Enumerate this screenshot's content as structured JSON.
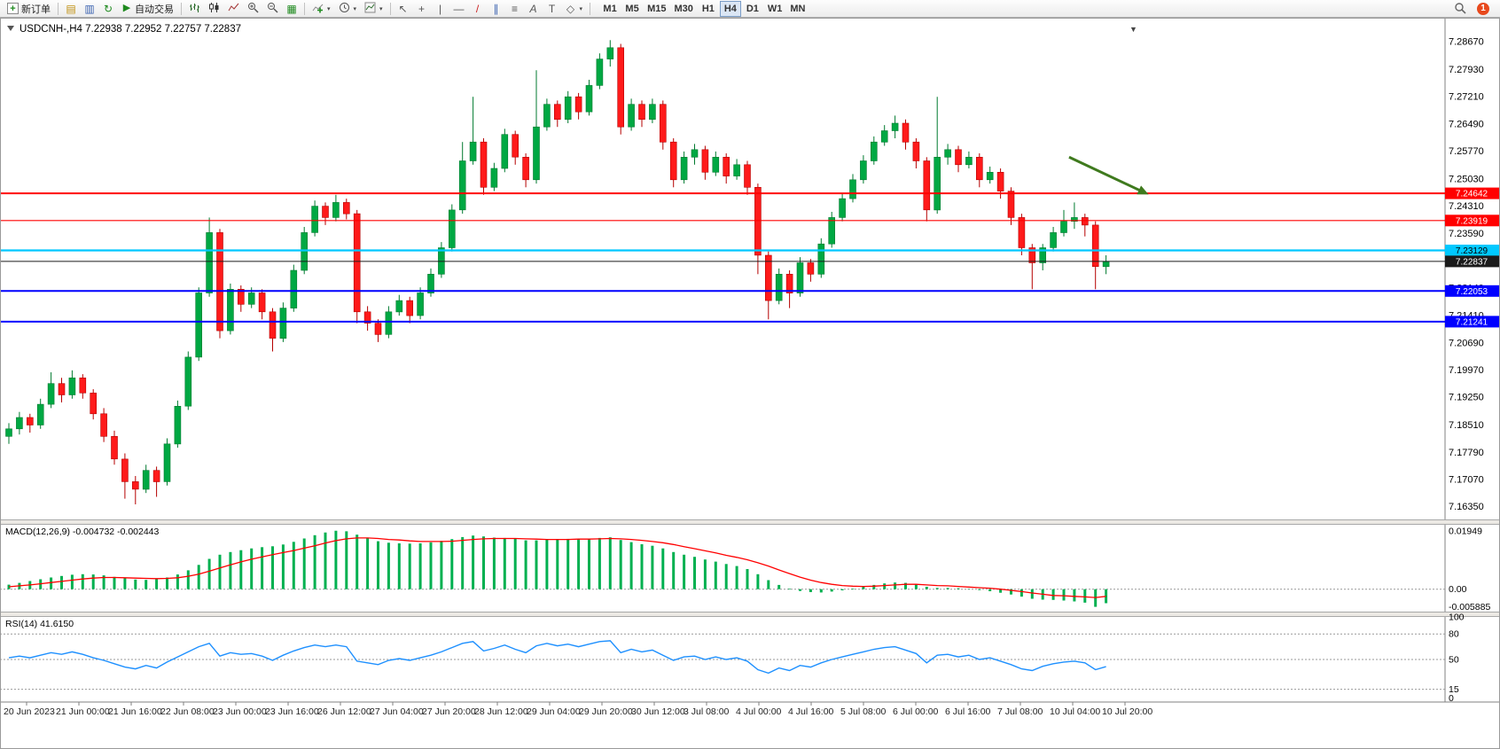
{
  "toolbar": {
    "new_order": "新订单",
    "autotrading": "自动交易",
    "timeframes": [
      "M1",
      "M5",
      "M15",
      "M30",
      "H1",
      "H4",
      "D1",
      "W1",
      "MN"
    ],
    "active_timeframe": "H4",
    "notification_count": "1"
  },
  "icons": {
    "plus": "+",
    "chart_window": "▤",
    "profiles": "▥",
    "refresh": "↻",
    "play": "▶",
    "tile_windows": "▦",
    "cursor": "↖",
    "crosshair": "+",
    "vertical_line": "|",
    "horizontal_line": "—",
    "trendline": "/",
    "channel": "∥",
    "fibonacci": "≡",
    "text": "A",
    "text_label": "T",
    "shapes": "◇",
    "caret": "▾",
    "collapse": "▼"
  },
  "chart": {
    "header": "USDCNH-,H4  7.22938 7.22952 7.22757 7.22837",
    "price_axis_labels": [
      "7.28670",
      "7.27930",
      "7.27210",
      "7.26490",
      "7.25770",
      "7.25030",
      "7.24310",
      "7.23590",
      "7.22870",
      "7.22140",
      "7.21410",
      "7.20690",
      "7.19970",
      "7.19250",
      "7.18510",
      "7.17790",
      "7.17070",
      "7.16350"
    ],
    "hlines": [
      {
        "price": 7.24642,
        "label": "7.24642",
        "color": "#ff0000",
        "thickness": 2,
        "text": "#ffffff",
        "is_bid": false
      },
      {
        "price": 7.23919,
        "label": "7.23919",
        "color": "#ff0000",
        "thickness": 1.2,
        "text": "#ffffff",
        "is_bid": false
      },
      {
        "price": 7.23129,
        "label": "7.23129",
        "color": "#00c8ff",
        "thickness": 2.2,
        "text": "#000000",
        "is_bid": false
      },
      {
        "price": 7.22837,
        "label": "7.22837",
        "color": "#1a1a1a",
        "thickness": 1,
        "text": "#ffffff",
        "is_bid": true
      },
      {
        "price": 7.22053,
        "label": "7.22053",
        "color": "#0000ff",
        "thickness": 2,
        "text": "#ffffff",
        "is_bid": false
      },
      {
        "price": 7.21241,
        "label": "7.21241",
        "color": "#0000ff",
        "thickness": 2,
        "text": "#ffffff",
        "is_bid": false
      }
    ],
    "arrow": {
      "from_bar": 100.5,
      "from_price": 7.256,
      "to_bar": 107.5,
      "to_price": 7.2468,
      "color": "#3f7a1e"
    }
  },
  "colors": {
    "bull": "#00a843",
    "bull_edge": "#007a2f",
    "bear": "#ff1a1a",
    "bear_edge": "#b50000",
    "macd_hist": "#00b050",
    "macd_signal": "#ff0000",
    "rsi_line": "#1e90ff"
  },
  "chart_data": {
    "type": "candlestick",
    "symbol": "USDCNH-",
    "timeframe": "H4",
    "candles": [
      [
        7.182,
        7.1855,
        7.18,
        7.184
      ],
      [
        7.184,
        7.1885,
        7.1825,
        7.187
      ],
      [
        7.187,
        7.188,
        7.183,
        7.185
      ],
      [
        7.185,
        7.192,
        7.184,
        7.1905
      ],
      [
        7.1905,
        7.199,
        7.1895,
        7.196
      ],
      [
        7.196,
        7.1975,
        7.191,
        7.193
      ],
      [
        7.193,
        7.1995,
        7.192,
        7.1975
      ],
      [
        7.1975,
        7.1985,
        7.192,
        7.1935
      ],
      [
        7.1935,
        7.1945,
        7.1865,
        7.188
      ],
      [
        7.188,
        7.1895,
        7.1805,
        7.182
      ],
      [
        7.182,
        7.1835,
        7.1745,
        7.176
      ],
      [
        7.176,
        7.1775,
        7.1655,
        7.17
      ],
      [
        7.17,
        7.1715,
        7.164,
        7.168
      ],
      [
        7.168,
        7.1745,
        7.167,
        7.173
      ],
      [
        7.173,
        7.174,
        7.166,
        7.17
      ],
      [
        7.17,
        7.1815,
        7.169,
        7.18
      ],
      [
        7.18,
        7.1915,
        7.179,
        7.19
      ],
      [
        7.19,
        7.2045,
        7.189,
        7.203
      ],
      [
        7.203,
        7.2215,
        7.202,
        7.22
      ],
      [
        7.22,
        7.24,
        7.219,
        7.236
      ],
      [
        7.236,
        7.237,
        7.208,
        7.21
      ],
      [
        7.21,
        7.2225,
        7.209,
        7.221
      ],
      [
        7.221,
        7.222,
        7.215,
        7.217
      ],
      [
        7.217,
        7.2215,
        7.216,
        7.22
      ],
      [
        7.22,
        7.221,
        7.213,
        7.215
      ],
      [
        7.215,
        7.216,
        7.2045,
        7.208
      ],
      [
        7.208,
        7.2175,
        7.207,
        7.216
      ],
      [
        7.216,
        7.2275,
        7.215,
        7.226
      ],
      [
        7.226,
        7.2375,
        7.225,
        7.236
      ],
      [
        7.236,
        7.2445,
        7.235,
        7.243
      ],
      [
        7.243,
        7.244,
        7.238,
        7.24
      ],
      [
        7.24,
        7.246,
        7.239,
        7.244
      ],
      [
        7.244,
        7.245,
        7.2395,
        7.241
      ],
      [
        7.241,
        7.242,
        7.212,
        7.215
      ],
      [
        7.215,
        7.2165,
        7.21,
        7.212
      ],
      [
        7.212,
        7.213,
        7.207,
        7.209
      ],
      [
        7.209,
        7.2165,
        7.208,
        7.215
      ],
      [
        7.215,
        7.2195,
        7.214,
        7.218
      ],
      [
        7.218,
        7.219,
        7.212,
        7.214
      ],
      [
        7.214,
        7.2215,
        7.213,
        7.22
      ],
      [
        7.22,
        7.2265,
        7.219,
        7.225
      ],
      [
        7.225,
        7.2335,
        7.224,
        7.232
      ],
      [
        7.232,
        7.2435,
        7.231,
        7.242
      ],
      [
        7.242,
        7.26,
        7.241,
        7.255
      ],
      [
        7.255,
        7.272,
        7.254,
        7.26
      ],
      [
        7.26,
        7.261,
        7.246,
        7.248
      ],
      [
        7.248,
        7.2545,
        7.247,
        7.253
      ],
      [
        7.253,
        7.2635,
        7.252,
        7.262
      ],
      [
        7.262,
        7.263,
        7.254,
        7.256
      ],
      [
        7.256,
        7.257,
        7.248,
        7.25
      ],
      [
        7.25,
        7.279,
        7.249,
        7.264
      ],
      [
        7.264,
        7.2715,
        7.263,
        7.27
      ],
      [
        7.27,
        7.271,
        7.264,
        7.266
      ],
      [
        7.266,
        7.2735,
        7.265,
        7.272
      ],
      [
        7.272,
        7.273,
        7.266,
        7.268
      ],
      [
        7.268,
        7.2765,
        7.267,
        7.275
      ],
      [
        7.275,
        7.2835,
        7.274,
        7.282
      ],
      [
        7.282,
        7.287,
        7.28,
        7.285
      ],
      [
        7.285,
        7.286,
        7.262,
        7.264
      ],
      [
        7.264,
        7.2715,
        7.263,
        7.27
      ],
      [
        7.27,
        7.271,
        7.264,
        7.266
      ],
      [
        7.266,
        7.2715,
        7.265,
        7.27
      ],
      [
        7.27,
        7.271,
        7.258,
        7.26
      ],
      [
        7.26,
        7.261,
        7.248,
        7.25
      ],
      [
        7.25,
        7.2575,
        7.249,
        7.256
      ],
      [
        7.256,
        7.2595,
        7.254,
        7.258
      ],
      [
        7.258,
        7.259,
        7.25,
        7.252
      ],
      [
        7.252,
        7.2575,
        7.251,
        7.256
      ],
      [
        7.256,
        7.257,
        7.249,
        7.251
      ],
      [
        7.251,
        7.2555,
        7.25,
        7.254
      ],
      [
        7.254,
        7.255,
        7.246,
        7.248
      ],
      [
        7.248,
        7.249,
        7.225,
        7.23
      ],
      [
        7.23,
        7.231,
        7.213,
        7.218
      ],
      [
        7.218,
        7.2265,
        7.217,
        7.225
      ],
      [
        7.225,
        7.226,
        7.216,
        7.22
      ],
      [
        7.22,
        7.2295,
        7.219,
        7.228
      ],
      [
        7.228,
        7.229,
        7.223,
        7.225
      ],
      [
        7.225,
        7.2345,
        7.224,
        7.233
      ],
      [
        7.233,
        7.2415,
        7.232,
        7.24
      ],
      [
        7.24,
        7.2465,
        7.239,
        7.245
      ],
      [
        7.245,
        7.2515,
        7.244,
        7.25
      ],
      [
        7.25,
        7.2565,
        7.249,
        7.255
      ],
      [
        7.255,
        7.2615,
        7.254,
        7.26
      ],
      [
        7.26,
        7.2645,
        7.259,
        7.263
      ],
      [
        7.263,
        7.267,
        7.261,
        7.265
      ],
      [
        7.265,
        7.266,
        7.258,
        7.26
      ],
      [
        7.26,
        7.261,
        7.253,
        7.255
      ],
      [
        7.255,
        7.256,
        7.239,
        7.242
      ],
      [
        7.242,
        7.272,
        7.241,
        7.256
      ],
      [
        7.256,
        7.2595,
        7.254,
        7.258
      ],
      [
        7.258,
        7.259,
        7.252,
        7.254
      ],
      [
        7.254,
        7.2575,
        7.253,
        7.256
      ],
      [
        7.256,
        7.257,
        7.248,
        7.25
      ],
      [
        7.25,
        7.2535,
        7.249,
        7.252
      ],
      [
        7.252,
        7.253,
        7.245,
        7.247
      ],
      [
        7.247,
        7.248,
        7.238,
        7.24
      ],
      [
        7.24,
        7.241,
        7.23,
        7.232
      ],
      [
        7.232,
        7.233,
        7.221,
        7.228
      ],
      [
        7.228,
        7.233,
        7.226,
        7.232
      ],
      [
        7.232,
        7.2375,
        7.231,
        7.236
      ],
      [
        7.236,
        7.242,
        7.235,
        7.239
      ],
      [
        7.239,
        7.244,
        7.237,
        7.24
      ],
      [
        7.24,
        7.241,
        7.235,
        7.238
      ],
      [
        7.238,
        7.239,
        7.221,
        7.227
      ],
      [
        7.227,
        7.23,
        7.225,
        7.2284
      ]
    ],
    "time_labels": [
      "20 Jun 2023",
      "21 Jun 00:00",
      "21 Jun 16:00",
      "22 Jun 08:00",
      "23 Jun 00:00",
      "23 Jun 16:00",
      "26 Jun 12:00",
      "27 Jun 04:00",
      "27 Jun 20:00",
      "28 Jun 12:00",
      "29 Jun 04:00",
      "29 Jun 20:00",
      "30 Jun 12:00",
      "3 Jul 08:00",
      "4 Jul 00:00",
      "4 Jul 16:00",
      "5 Jul 08:00",
      "6 Jul 00:00",
      "6 Jul 16:00",
      "7 Jul 08:00",
      "10 Jul 04:00",
      "10 Jul 20:00"
    ],
    "indicators": {
      "macd": {
        "label": "MACD(12,26,9) -0.004732 -0.002443",
        "axis_labels": [
          "0.01949",
          "0.00",
          "-0.005885"
        ],
        "histogram": [
          0.0015,
          0.0021,
          0.0027,
          0.0033,
          0.0039,
          0.0044,
          0.0048,
          0.005,
          0.0049,
          0.0046,
          0.0041,
          0.0036,
          0.0032,
          0.0031,
          0.0033,
          0.0039,
          0.0049,
          0.0063,
          0.0081,
          0.0101,
          0.0115,
          0.0124,
          0.013,
          0.0136,
          0.014,
          0.0143,
          0.0149,
          0.0158,
          0.0169,
          0.018,
          0.0189,
          0.0195,
          0.0193,
          0.0182,
          0.017,
          0.016,
          0.0155,
          0.0153,
          0.0152,
          0.0153,
          0.0156,
          0.0161,
          0.0167,
          0.0174,
          0.0179,
          0.0176,
          0.0172,
          0.0171,
          0.0168,
          0.0163,
          0.0163,
          0.0165,
          0.0166,
          0.0168,
          0.0167,
          0.0168,
          0.0171,
          0.0173,
          0.0164,
          0.0157,
          0.015,
          0.0145,
          0.0136,
          0.0124,
          0.0115,
          0.0108,
          0.0099,
          0.0092,
          0.0084,
          0.0077,
          0.0067,
          0.005,
          0.003,
          0.0014,
          0.0002,
          -0.0006,
          -0.001,
          -0.0011,
          -0.0008,
          -0.0004,
          0.0002,
          0.0008,
          0.0014,
          0.0019,
          0.0022,
          0.0021,
          0.0016,
          0.0008,
          0.0004,
          0.0004,
          0.0003,
          0.0001,
          -0.0003,
          -0.0007,
          -0.0012,
          -0.0018,
          -0.0025,
          -0.0032,
          -0.0035,
          -0.0036,
          -0.0038,
          -0.0041,
          -0.0045,
          -0.0059,
          -0.0047
        ],
        "signal": [
          0.0008,
          0.0011,
          0.0014,
          0.0018,
          0.0022,
          0.0026,
          0.003,
          0.0034,
          0.0037,
          0.0039,
          0.0039,
          0.0038,
          0.0037,
          0.0036,
          0.0035,
          0.0036,
          0.0038,
          0.0043,
          0.005,
          0.006,
          0.0071,
          0.0081,
          0.0091,
          0.01,
          0.0108,
          0.0115,
          0.0122,
          0.0129,
          0.0137,
          0.0145,
          0.0154,
          0.0162,
          0.0168,
          0.0171,
          0.0171,
          0.0169,
          0.0166,
          0.0164,
          0.0161,
          0.0159,
          0.0159,
          0.0159,
          0.016,
          0.0163,
          0.0166,
          0.0168,
          0.0169,
          0.0169,
          0.0169,
          0.0168,
          0.0167,
          0.0166,
          0.0166,
          0.0166,
          0.0167,
          0.0167,
          0.0168,
          0.0169,
          0.0168,
          0.0166,
          0.0163,
          0.0159,
          0.0155,
          0.0149,
          0.0142,
          0.0135,
          0.0128,
          0.0121,
          0.0113,
          0.0106,
          0.0098,
          0.0088,
          0.0077,
          0.0064,
          0.0052,
          0.004,
          0.003,
          0.0022,
          0.0016,
          0.0012,
          0.001,
          0.0009,
          0.001,
          0.0012,
          0.0014,
          0.0016,
          0.0016,
          0.0014,
          0.0012,
          0.0011,
          0.0009,
          0.0007,
          0.0005,
          0.0003,
          0,
          -0.0004,
          -0.0008,
          -0.0013,
          -0.0017,
          -0.0021,
          -0.0022,
          -0.0024,
          -0.0026,
          -0.0028,
          -0.0024
        ]
      },
      "rsi": {
        "label": "RSI(14) 41.6150",
        "axis_labels": [
          "100",
          "80",
          "50",
          "15",
          "0"
        ],
        "levels": [
          80,
          50,
          15
        ],
        "values": [
          52,
          54,
          52,
          55,
          58,
          56,
          59,
          56,
          52,
          49,
          45,
          41,
          39,
          43,
          40,
          47,
          53,
          59,
          65,
          69,
          54,
          58,
          56,
          57,
          54,
          49,
          55,
          60,
          64,
          67,
          65,
          67,
          65,
          48,
          46,
          44,
          49,
          51,
          49,
          52,
          55,
          59,
          64,
          69,
          71,
          60,
          63,
          67,
          62,
          58,
          66,
          69,
          66,
          68,
          65,
          68,
          71,
          72,
          58,
          62,
          59,
          61,
          55,
          49,
          53,
          54,
          50,
          53,
          50,
          52,
          48,
          38,
          34,
          40,
          37,
          43,
          41,
          46,
          50,
          53,
          56,
          59,
          62,
          64,
          65,
          61,
          57,
          46,
          55,
          56,
          53,
          55,
          50,
          52,
          48,
          44,
          39,
          37,
          42,
          45,
          47,
          48,
          46,
          38,
          41.6
        ]
      }
    }
  }
}
